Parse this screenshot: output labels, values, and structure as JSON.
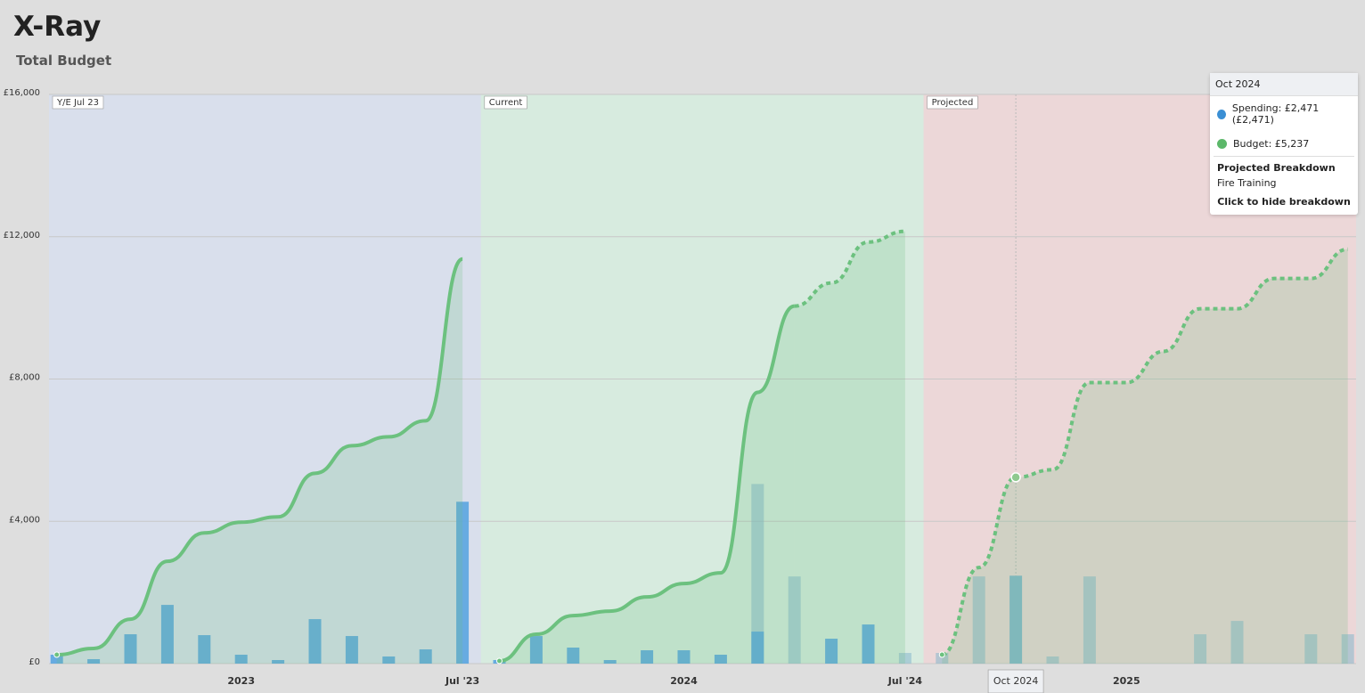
{
  "header": {
    "title": "X-Ray",
    "subtitle": "Total Budget"
  },
  "chart_data": {
    "type": "combo",
    "categories": [
      null,
      null,
      null,
      null,
      null,
      "2023",
      null,
      null,
      null,
      null,
      null,
      "Jul '23",
      null,
      null,
      null,
      null,
      null,
      "2024",
      null,
      null,
      null,
      null,
      null,
      "Jul '24",
      null,
      null,
      "Oct 2024",
      null,
      null,
      "2025",
      null,
      null,
      null,
      null,
      null,
      null
    ],
    "ylim": [
      0,
      16000
    ],
    "yticks": [
      {
        "value": 0,
        "label": "£0"
      },
      {
        "value": 4000,
        "label": "£4,000"
      },
      {
        "value": 8000,
        "label": "£8,000"
      },
      {
        "value": 12000,
        "label": "£12,000"
      },
      {
        "value": 16000,
        "label": "£16,000"
      }
    ],
    "regions": [
      {
        "label": "Y/E Jul 23",
        "color": "#d9dfec"
      },
      {
        "label": "Current",
        "color": "#d7ebdf"
      },
      {
        "label": "Projected",
        "color": "#ecd7d8"
      }
    ],
    "series": [
      {
        "name": "Spending",
        "kind": "bar",
        "color": "#5aa5e0",
        "values": [
          250,
          125,
          825,
          1650,
          800,
          250,
          100,
          1250,
          775,
          200,
          400,
          4550,
          100,
          775,
          450,
          100,
          375,
          375,
          250,
          900,
          null,
          700,
          1100,
          null,
          null,
          null,
          null,
          null,
          null,
          null,
          null,
          null,
          null,
          null,
          null,
          null
        ]
      },
      {
        "name": "Budget",
        "kind": "line",
        "color": "#6cc17f",
        "values": [
          250,
          425,
          1250,
          2875,
          3675,
          3975,
          4125,
          5350,
          6125,
          6375,
          6825,
          11375,
          75,
          825,
          1350,
          1475,
          1875,
          2250,
          2550,
          7625,
          10050,
          null,
          null,
          null,
          null,
          null,
          null,
          null,
          null,
          null,
          null,
          null,
          null,
          null,
          null,
          null
        ]
      }
    ],
    "projected_series": [
      {
        "kind": "bar",
        "color": "#86b6cc",
        "values": [
          null,
          null,
          null,
          null,
          null,
          null,
          null,
          null,
          null,
          null,
          null,
          null,
          null,
          null,
          null,
          null,
          null,
          null,
          null,
          5050,
          2450,
          null,
          null,
          300,
          300,
          2450,
          2471,
          200,
          2450,
          null,
          null,
          825,
          1200,
          null,
          825,
          825
        ]
      },
      {
        "kind": "line",
        "color": "#6cc17f",
        "dashed": true,
        "values": [
          null,
          null,
          null,
          null,
          null,
          null,
          null,
          null,
          null,
          null,
          null,
          null,
          null,
          null,
          null,
          null,
          null,
          null,
          null,
          null,
          10050,
          10700,
          11850,
          12150,
          250,
          2700,
          5237,
          5450,
          7900,
          7900,
          8775,
          9975,
          9975,
          10825,
          10825,
          11650
        ]
      }
    ],
    "tooltip": {
      "title": "Oct 2024",
      "items": [
        {
          "text": "Spending: £2,471 (£2,471)",
          "color": "#3b8fd4"
        },
        {
          "text": "Budget: £5,237",
          "color": "#5cb86a"
        }
      ],
      "section": "Projected Breakdown",
      "detail": "Fire Training",
      "action": "Click to hide breakdown"
    }
  }
}
